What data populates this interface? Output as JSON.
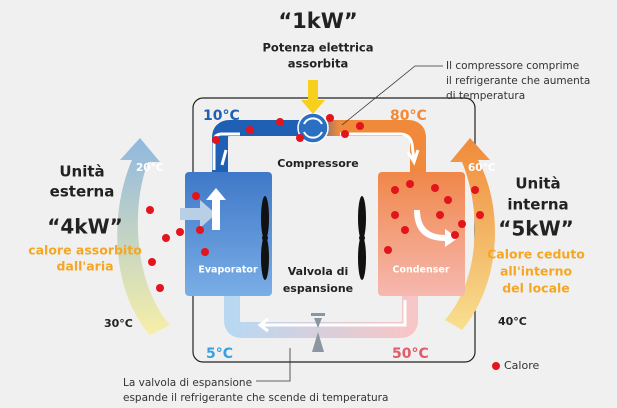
{
  "power": {
    "value": "“1kW”",
    "label": [
      "Potenza elettrica",
      "assorbita"
    ]
  },
  "compressor_note": [
    "Il compressore comprime",
    "il refrigerante che aumenta",
    "di temperatura"
  ],
  "temperatures": {
    "evap_out": "10°C",
    "comp_out": "80°C",
    "outdoor_in": "20°C",
    "indoor_out": "60°C",
    "outdoor_out": "30°C",
    "indoor_in": "40°C",
    "valve_out": "5°C",
    "cond_out": "50°C"
  },
  "compressor": "Compressore",
  "outdoor": {
    "title": [
      "Unità",
      "esterna"
    ],
    "power": "“4kW”",
    "description": [
      "calore assorbito",
      "dall'aria"
    ]
  },
  "indoor": {
    "title": [
      "Unità",
      "interna"
    ],
    "power": "“5kW”",
    "description": [
      "Calore ceduto",
      "all'interno",
      "del locale"
    ]
  },
  "evaporator": "Evaporator",
  "condenser": "Condenser",
  "valve": [
    "Valvola di",
    "espansione"
  ],
  "legend": "Calore",
  "valve_note": [
    "La valvola di espansione",
    "espande il refrigerante che scende di temperatura"
  ]
}
